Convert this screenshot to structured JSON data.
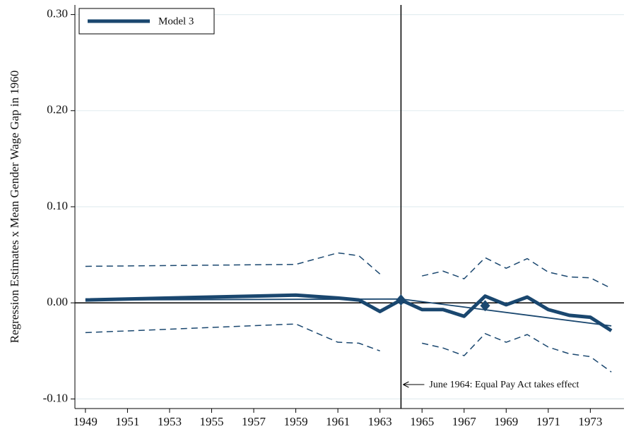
{
  "chart_data": {
    "type": "line",
    "y_label": "Regression Estimates x Mean Gender Wage Gap in 1960",
    "xlim": [
      1948.5,
      1974.6
    ],
    "xticks": [
      1949,
      1951,
      1953,
      1955,
      1957,
      1959,
      1961,
      1963,
      1965,
      1967,
      1969,
      1971,
      1973
    ],
    "ylim": [
      -0.11,
      0.31
    ],
    "yticks": [
      {
        "value": -0.1,
        "label": "-0.10"
      },
      {
        "value": 0,
        "label": "0.00"
      },
      {
        "value": 0.1,
        "label": "0.10"
      },
      {
        "value": 0.2,
        "label": "0.20"
      },
      {
        "value": 0.3,
        "label": "0.30"
      }
    ],
    "grid": true,
    "hline": 0,
    "vline": 1964,
    "annotation": "June 1964: Equal Pay Act takes effect",
    "legend_position": "top-left",
    "series": [
      {
        "name": "Model 3",
        "color": "#1a476f",
        "style": "thick",
        "x": [
          1949,
          1959,
          1961,
          1962,
          1963,
          1964,
          1965,
          1966,
          1967,
          1968,
          1969,
          1970,
          1971,
          1972,
          1973,
          1974
        ],
        "values": [
          0.003,
          0.008,
          0.005,
          0.003,
          -0.009,
          0.003,
          -0.007,
          -0.007,
          -0.014,
          0.007,
          -0.002,
          0.006,
          -0.007,
          -0.013,
          -0.015,
          -0.029
        ]
      },
      {
        "color": "#1a476f",
        "style": "dashed",
        "x": [
          1949,
          1959,
          1961,
          1962,
          1963,
          1964,
          1965,
          1966,
          1967,
          1968,
          1969,
          1970,
          1971,
          1972,
          1973,
          1974
        ],
        "values": [
          0.038,
          0.04,
          0.052,
          0.049,
          0.03,
          null,
          0.028,
          0.033,
          0.025,
          0.047,
          0.036,
          0.046,
          0.032,
          0.027,
          0.026,
          0.015
        ]
      },
      {
        "color": "#1a476f",
        "style": "dashed",
        "x": [
          1949,
          1959,
          1961,
          1962,
          1963,
          1964,
          1965,
          1966,
          1967,
          1968,
          1969,
          1970,
          1971,
          1972,
          1973,
          1974
        ],
        "values": [
          -0.031,
          -0.022,
          -0.041,
          -0.042,
          -0.05,
          null,
          -0.042,
          -0.047,
          -0.055,
          -0.032,
          -0.041,
          -0.033,
          -0.046,
          -0.053,
          -0.056,
          -0.072
        ]
      },
      {
        "color": "#1a476f",
        "style": "thin",
        "x": [
          1949,
          1964,
          1974
        ],
        "values": [
          0.003,
          0.004,
          -0.024
        ]
      },
      {
        "color": "#1a476f",
        "style": "diamond",
        "x": [
          1964,
          1968
        ],
        "values": [
          0.003,
          -0.003
        ]
      }
    ]
  }
}
